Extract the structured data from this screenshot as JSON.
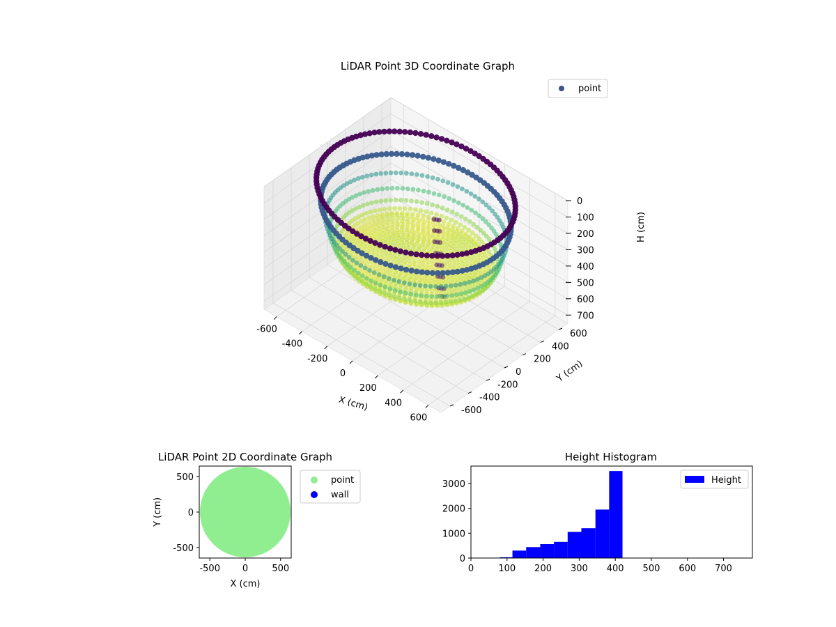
{
  "chart_data": [
    {
      "type": "scatter",
      "projection": "3d",
      "title": "LiDAR Point 3D Coordinate Graph",
      "xlabel": "X (cm)",
      "ylabel": "Y (cm)",
      "zlabel": "H (cm)",
      "xlim": [
        -700,
        700
      ],
      "ylim": [
        -700,
        700
      ],
      "zlim": [
        0,
        750
      ],
      "z_inverted": true,
      "xticks": [
        "-600",
        "-400",
        "-200",
        "0",
        "200",
        "400",
        "600"
      ],
      "yticks": [
        "-600",
        "-400",
        "-200",
        "0",
        "200",
        "400",
        "600"
      ],
      "zticks": [
        "0",
        "100",
        "200",
        "300",
        "400",
        "500",
        "600",
        "700"
      ],
      "colormap": "viridis",
      "legend": {
        "placement": "top-right",
        "entries": [
          {
            "label": "point",
            "color": "#3b528b"
          }
        ]
      },
      "series": [
        {
          "name": "point",
          "shape": "bowl",
          "rim_radius": 640,
          "rim_height": 0,
          "floor_height": 400,
          "floor_radius": 470
        },
        {
          "name": "point",
          "shape": "pillar",
          "points": [
            {
              "x": 250,
              "y": -120,
              "z": 0
            },
            {
              "x": 260,
              "y": -130,
              "z": 60
            },
            {
              "x": 270,
              "y": -140,
              "z": 120
            },
            {
              "x": 285,
              "y": -150,
              "z": 180
            },
            {
              "x": 300,
              "y": -160,
              "z": 240
            },
            {
              "x": 315,
              "y": -170,
              "z": 300
            },
            {
              "x": 330,
              "y": -180,
              "z": 360
            },
            {
              "x": 345,
              "y": -190,
              "z": 400
            }
          ]
        }
      ],
      "grid": true
    },
    {
      "type": "scatter",
      "title": "LiDAR Point 2D Coordinate Graph",
      "xlabel": "X (cm)",
      "ylabel": "Y (cm)",
      "xlim": [
        -650,
        650
      ],
      "ylim": [
        -650,
        650
      ],
      "xticks": [
        -500,
        0,
        500
      ],
      "yticks": [
        -500,
        0,
        500
      ],
      "legend": {
        "placement": "outside-right",
        "entries": [
          {
            "label": "point",
            "color": "#90ee90"
          },
          {
            "label": "wall",
            "color": "#0000ff"
          }
        ]
      },
      "series": [
        {
          "name": "point",
          "shape": "disk",
          "radius": 640,
          "color": "#90ee90"
        }
      ]
    },
    {
      "type": "bar",
      "subtype": "histogram",
      "title": "Height Histogram",
      "xlim": [
        0,
        780
      ],
      "ylim": [
        0,
        3700
      ],
      "xticks": [
        0,
        100,
        200,
        300,
        400,
        500,
        600,
        700
      ],
      "yticks": [
        0,
        1000,
        2000,
        3000
      ],
      "legend": {
        "placement": "top-right",
        "entries": [
          {
            "label": "Height",
            "color": "#0000ff"
          }
        ]
      },
      "bins": [
        {
          "x0": 80,
          "x1": 115,
          "value": 30
        },
        {
          "x0": 115,
          "x1": 153,
          "value": 300
        },
        {
          "x0": 153,
          "x1": 192,
          "value": 440
        },
        {
          "x0": 192,
          "x1": 230,
          "value": 560
        },
        {
          "x0": 230,
          "x1": 268,
          "value": 650
        },
        {
          "x0": 268,
          "x1": 306,
          "value": 1050
        },
        {
          "x0": 306,
          "x1": 345,
          "value": 1200
        },
        {
          "x0": 345,
          "x1": 383,
          "value": 1950
        },
        {
          "x0": 383,
          "x1": 420,
          "value": 3500
        }
      ],
      "color": "#0000ff"
    }
  ]
}
